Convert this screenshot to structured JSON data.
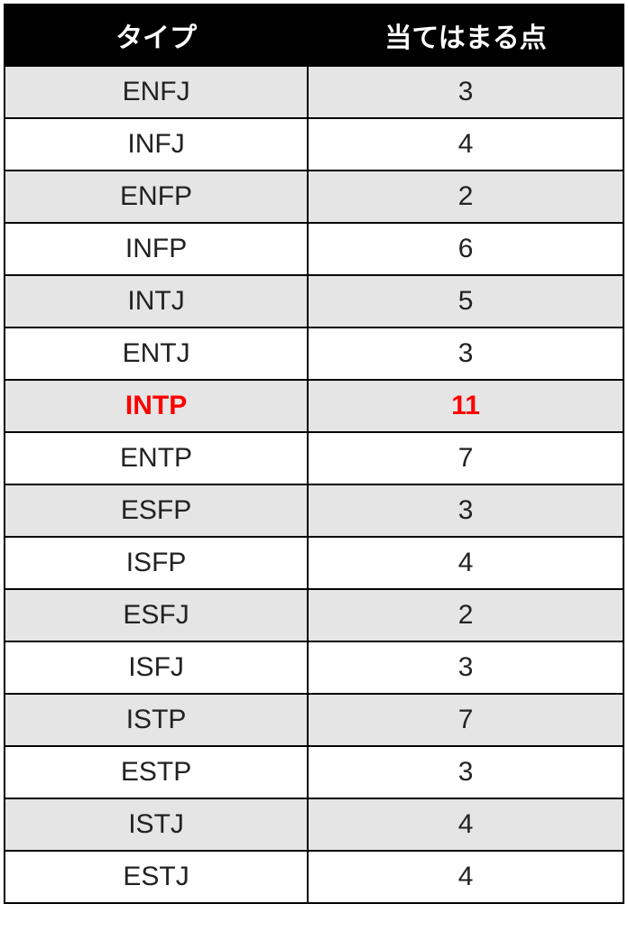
{
  "table": {
    "headers": {
      "type": "タイプ",
      "points": "当てはまる点"
    },
    "rows": [
      {
        "type": "ENFJ",
        "points": "3",
        "highlight": false
      },
      {
        "type": "INFJ",
        "points": "4",
        "highlight": false
      },
      {
        "type": "ENFP",
        "points": "2",
        "highlight": false
      },
      {
        "type": "INFP",
        "points": "6",
        "highlight": false
      },
      {
        "type": "INTJ",
        "points": "5",
        "highlight": false
      },
      {
        "type": "ENTJ",
        "points": "3",
        "highlight": false
      },
      {
        "type": "INTP",
        "points": "11",
        "highlight": true
      },
      {
        "type": "ENTP",
        "points": "7",
        "highlight": false
      },
      {
        "type": "ESFP",
        "points": "3",
        "highlight": false
      },
      {
        "type": "ISFP",
        "points": "4",
        "highlight": false
      },
      {
        "type": "ESFJ",
        "points": "2",
        "highlight": false
      },
      {
        "type": "ISFJ",
        "points": "3",
        "highlight": false
      },
      {
        "type": "ISTP",
        "points": "7",
        "highlight": false
      },
      {
        "type": "ESTP",
        "points": "3",
        "highlight": false
      },
      {
        "type": "ISTJ",
        "points": "4",
        "highlight": false
      },
      {
        "type": "ESTJ",
        "points": "4",
        "highlight": false
      }
    ],
    "colors": {
      "header_bg": "#000000",
      "header_text": "#ffffff",
      "odd_row_bg": "#e5e5e5",
      "even_row_bg": "#ffffff",
      "border": "#000000",
      "text": "#222222",
      "highlight_text": "#ff0000"
    },
    "font_size": 30
  }
}
